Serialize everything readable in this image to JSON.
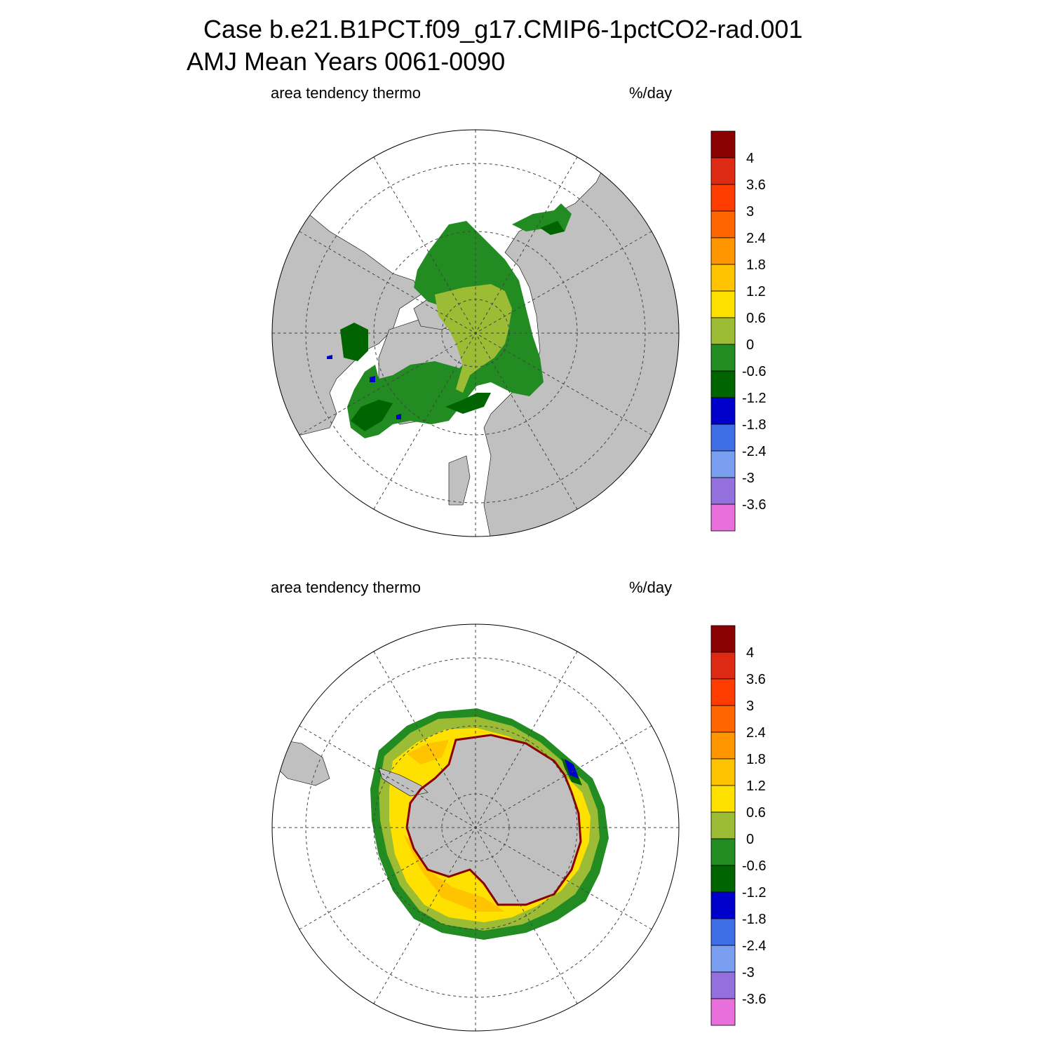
{
  "title_line1": "Case b.e21.B1PCT.f09_g17.CMIP6-1pctCO2-rad.001",
  "title_line2": "AMJ Mean   Years 0061-0090",
  "panels": [
    {
      "hemisphere": "north",
      "left_label": "area tendency thermo",
      "right_label": "%/day"
    },
    {
      "hemisphere": "south",
      "left_label": "area tendency thermo",
      "right_label": "%/day"
    }
  ],
  "colorbar": {
    "labels": [
      "4",
      "3.6",
      "3",
      "2.4",
      "1.8",
      "1.2",
      "0.6",
      "0",
      "-0.6",
      "-1.2",
      "-1.8",
      "-2.4",
      "-3",
      "-3.6"
    ],
    "colors": [
      "#8b0000",
      "#dc2a14",
      "#ff3c00",
      "#ff6600",
      "#ff9600",
      "#ffc300",
      "#ffe100",
      "#9cbc36",
      "#228b22",
      "#006400",
      "#0000cd",
      "#3f6fe8",
      "#7a9ff0",
      "#9470dc",
      "#e86fdc"
    ]
  },
  "map_colors": {
    "land": "#c0c0c0",
    "ocean": "#ffffff"
  }
}
